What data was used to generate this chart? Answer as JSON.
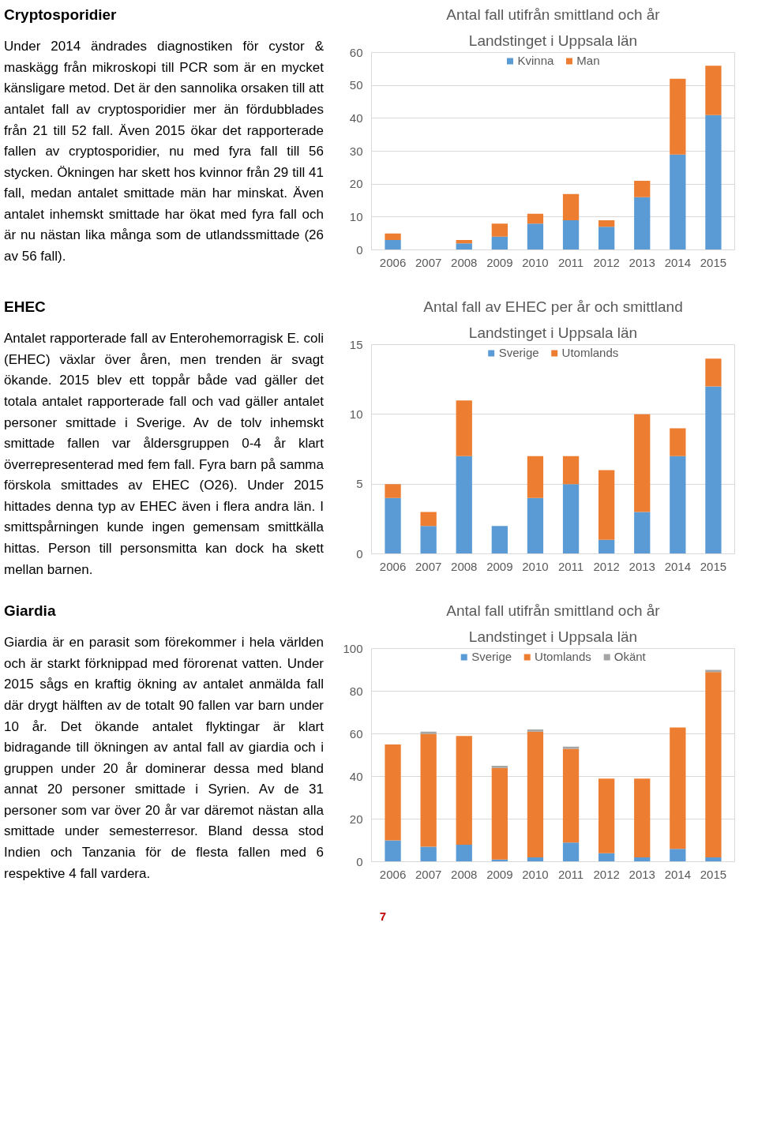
{
  "chart_data": [
    {
      "type": "bar",
      "stacked": true,
      "title": "Antal fall utifrån smittland och år",
      "subtitle": "Landstinget i Uppsala län",
      "categories": [
        "2006",
        "2007",
        "2008",
        "2009",
        "2010",
        "2011",
        "2012",
        "2013",
        "2014",
        "2015"
      ],
      "series": [
        {
          "name": "Kvinna",
          "color": "#5b9bd5",
          "values": [
            3,
            0,
            2,
            4,
            8,
            9,
            7,
            16,
            29,
            41
          ]
        },
        {
          "name": "Man",
          "color": "#ed7d31",
          "values": [
            2,
            0,
            1,
            4,
            3,
            8,
            2,
            5,
            23,
            15
          ]
        }
      ],
      "ylim": [
        0,
        60
      ],
      "yticks": [
        0,
        10,
        20,
        30,
        40,
        50,
        60
      ],
      "grid": "y",
      "legend": "top",
      "annotations": [
        "Cryptosporidier",
        "Under 2014 ändrades diagnostiken för cystor & maskägg från mikroskopi till PCR som är en mycket känsligare metod. Det är den sannolika orsaken till att antalet fall av cryptosporidier mer än fördubblades från 21 till 52 fall. Även 2015 ökar det rapporterade fallen av cryptosporidier, nu med fyra fall till 56 stycken. Ökningen har skett hos kvinnor från 29 till 41 fall, medan antalet smittade män har minskat. Även antalet inhemskt smittade har ökat med fyra fall och är nu nästan lika många som de utlandssmittade (26 av 56 fall)."
      ]
    },
    {
      "type": "bar",
      "stacked": true,
      "title": "Antal fall av EHEC per år och smittland",
      "subtitle": "Landstinget i Uppsala län",
      "categories": [
        "2006",
        "2007",
        "2008",
        "2009",
        "2010",
        "2011",
        "2012",
        "2013",
        "2014",
        "2015"
      ],
      "series": [
        {
          "name": "Sverige",
          "color": "#5b9bd5",
          "values": [
            4,
            2,
            7,
            2,
            4,
            5,
            1,
            3,
            7,
            12
          ]
        },
        {
          "name": "Utomlands",
          "color": "#ed7d31",
          "values": [
            1,
            1,
            4,
            0,
            3,
            2,
            5,
            7,
            2,
            2
          ]
        }
      ],
      "ylim": [
        0,
        15
      ],
      "yticks": [
        0,
        5,
        10,
        15
      ],
      "grid": "y",
      "legend": "top",
      "annotations": [
        "EHEC",
        "Antalet rapporterade fall av Enterohemorragisk E. coli (EHEC) växlar över åren, men trenden är svagt ökande. 2015 blev ett toppår både vad gäller det totala antalet rapporterade fall och vad gäller antalet personer smittade i Sverige. Av de tolv inhemskt smittade fallen var åldersgruppen 0-4 år klart överrepresenterad med fem fall. Fyra barn på samma förskola smittades av EHEC (O26). Under 2015 hittades denna typ av EHEC även i flera andra län. I smittspårningen kunde ingen gemensam smittkälla hittas. Person till personsmitta kan dock ha skett mellan barnen."
      ]
    },
    {
      "type": "bar",
      "stacked": true,
      "title": "Antal fall utifrån smittland och år",
      "subtitle": "Landstinget i Uppsala län",
      "categories": [
        "2006",
        "2007",
        "2008",
        "2009",
        "2010",
        "2011",
        "2012",
        "2013",
        "2014",
        "2015"
      ],
      "series": [
        {
          "name": "Sverige",
          "color": "#5b9bd5",
          "values": [
            10,
            7,
            8,
            1,
            2,
            9,
            4,
            2,
            6,
            2
          ]
        },
        {
          "name": "Utomlands",
          "color": "#ed7d31",
          "values": [
            45,
            53,
            51,
            43,
            59,
            44,
            35,
            37,
            57,
            87
          ]
        },
        {
          "name": "Okänt",
          "color": "#a5a5a5",
          "values": [
            0,
            1,
            0,
            1,
            1,
            1,
            0,
            0,
            0,
            1
          ]
        }
      ],
      "ylim": [
        0,
        100
      ],
      "yticks": [
        0,
        20,
        40,
        60,
        80,
        100
      ],
      "grid": "y",
      "legend": "top",
      "annotations": [
        "Giardia",
        "Giardia är en parasit som förekommer i hela världen och är starkt förknippad med förorenat vatten. Under 2015 sågs en kraftig ökning av antalet anmälda fall där drygt hälften av de totalt 90 fallen var barn under 10 år. Det ökande antalet flyktingar är klart bidragande till ökningen av antal fall av giardia och i gruppen under 20 år dominerar dessa med bland annat 20 personer smittade i Syrien. Av de 31 personer som var över 20 år var däremot nästan alla smittade under semesterresor. Bland dessa stod Indien och Tanzania för de flesta fallen med 6 respektive 4 fall vardera.",
        "7"
      ]
    }
  ]
}
